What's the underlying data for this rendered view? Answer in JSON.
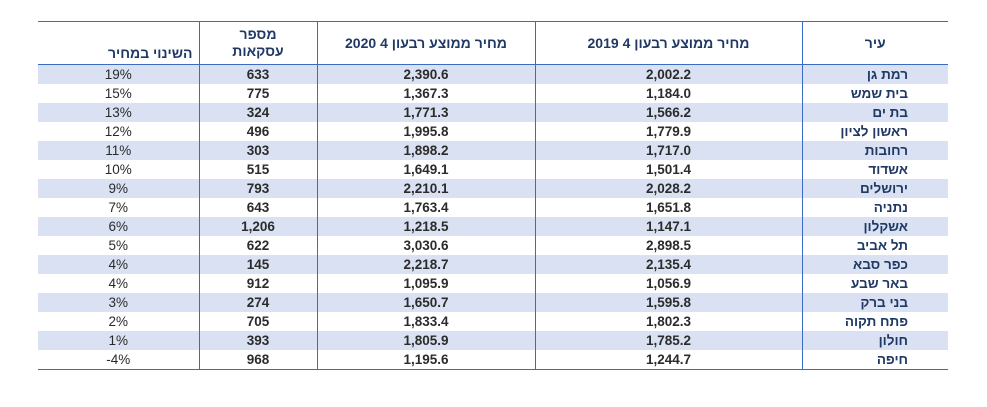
{
  "table": {
    "headers": {
      "change": "השינוי במחיר",
      "deals": "מספר\nעסקאות",
      "price2020": "מחיר ממוצע רבעון 4 2020",
      "price2019": "מחיר ממוצע רבעון 4 2019",
      "city": "עיר"
    },
    "rows": [
      {
        "change": "19%",
        "deals": "633",
        "price2020": "2,390.6",
        "price2019": "2,002.2",
        "city": "רמת גן"
      },
      {
        "change": "15%",
        "deals": "775",
        "price2020": "1,367.3",
        "price2019": "1,184.0",
        "city": "בית שמש"
      },
      {
        "change": "13%",
        "deals": "324",
        "price2020": "1,771.3",
        "price2019": "1,566.2",
        "city": "בת ים"
      },
      {
        "change": "12%",
        "deals": "496",
        "price2020": "1,995.8",
        "price2019": "1,779.9",
        "city": "ראשון לציון"
      },
      {
        "change": "11%",
        "deals": "303",
        "price2020": "1,898.2",
        "price2019": "1,717.0",
        "city": "רחובות"
      },
      {
        "change": "10%",
        "deals": "515",
        "price2020": "1,649.1",
        "price2019": "1,501.4",
        "city": "אשדוד"
      },
      {
        "change": "9%",
        "deals": "793",
        "price2020": "2,210.1",
        "price2019": "2,028.2",
        "city": "ירושלים"
      },
      {
        "change": "7%",
        "deals": "643",
        "price2020": "1,763.4",
        "price2019": "1,651.8",
        "city": "נתניה"
      },
      {
        "change": "6%",
        "deals": "1,206",
        "price2020": "1,218.5",
        "price2019": "1,147.1",
        "city": "אשקלון"
      },
      {
        "change": "5%",
        "deals": "622",
        "price2020": "3,030.6",
        "price2019": "2,898.5",
        "city": "תל אביב"
      },
      {
        "change": "4%",
        "deals": "145",
        "price2020": "2,218.7",
        "price2019": "2,135.4",
        "city": "כפר סבא"
      },
      {
        "change": "4%",
        "deals": "912",
        "price2020": "1,095.9",
        "price2019": "1,056.9",
        "city": "באר שבע"
      },
      {
        "change": "3%",
        "deals": "274",
        "price2020": "1,650.7",
        "price2019": "1,595.8",
        "city": "בני ברק"
      },
      {
        "change": "2%",
        "deals": "705",
        "price2020": "1,833.4",
        "price2019": "1,802.3",
        "city": "פתח תקוה"
      },
      {
        "change": "1%",
        "deals": "393",
        "price2020": "1,805.9",
        "price2019": "1,785.2",
        "city": "חולון"
      },
      {
        "change": "-4%",
        "deals": "968",
        "price2020": "1,195.6",
        "price2019": "1,244.7",
        "city": "חיפה"
      }
    ]
  },
  "colors": {
    "border": "#3b6cc4",
    "stripe": "#d9e1f2",
    "header_text": "#1f3864"
  }
}
